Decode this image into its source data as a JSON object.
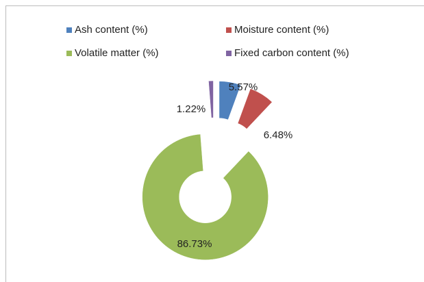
{
  "chart_data": {
    "type": "doughnut",
    "categories": [
      "Ash content (%)",
      "Moisture content (%)",
      "Volatile matter (%)",
      "Fixed carbon content (%)"
    ],
    "values": [
      5.57,
      6.48,
      86.73,
      1.22
    ],
    "value_labels": [
      "5.57%",
      "6.48%",
      "86.73%",
      "1.22%"
    ],
    "colors": [
      "#4f81bd",
      "#c0504d",
      "#9bbb59",
      "#8064a2"
    ],
    "exploded": true
  }
}
